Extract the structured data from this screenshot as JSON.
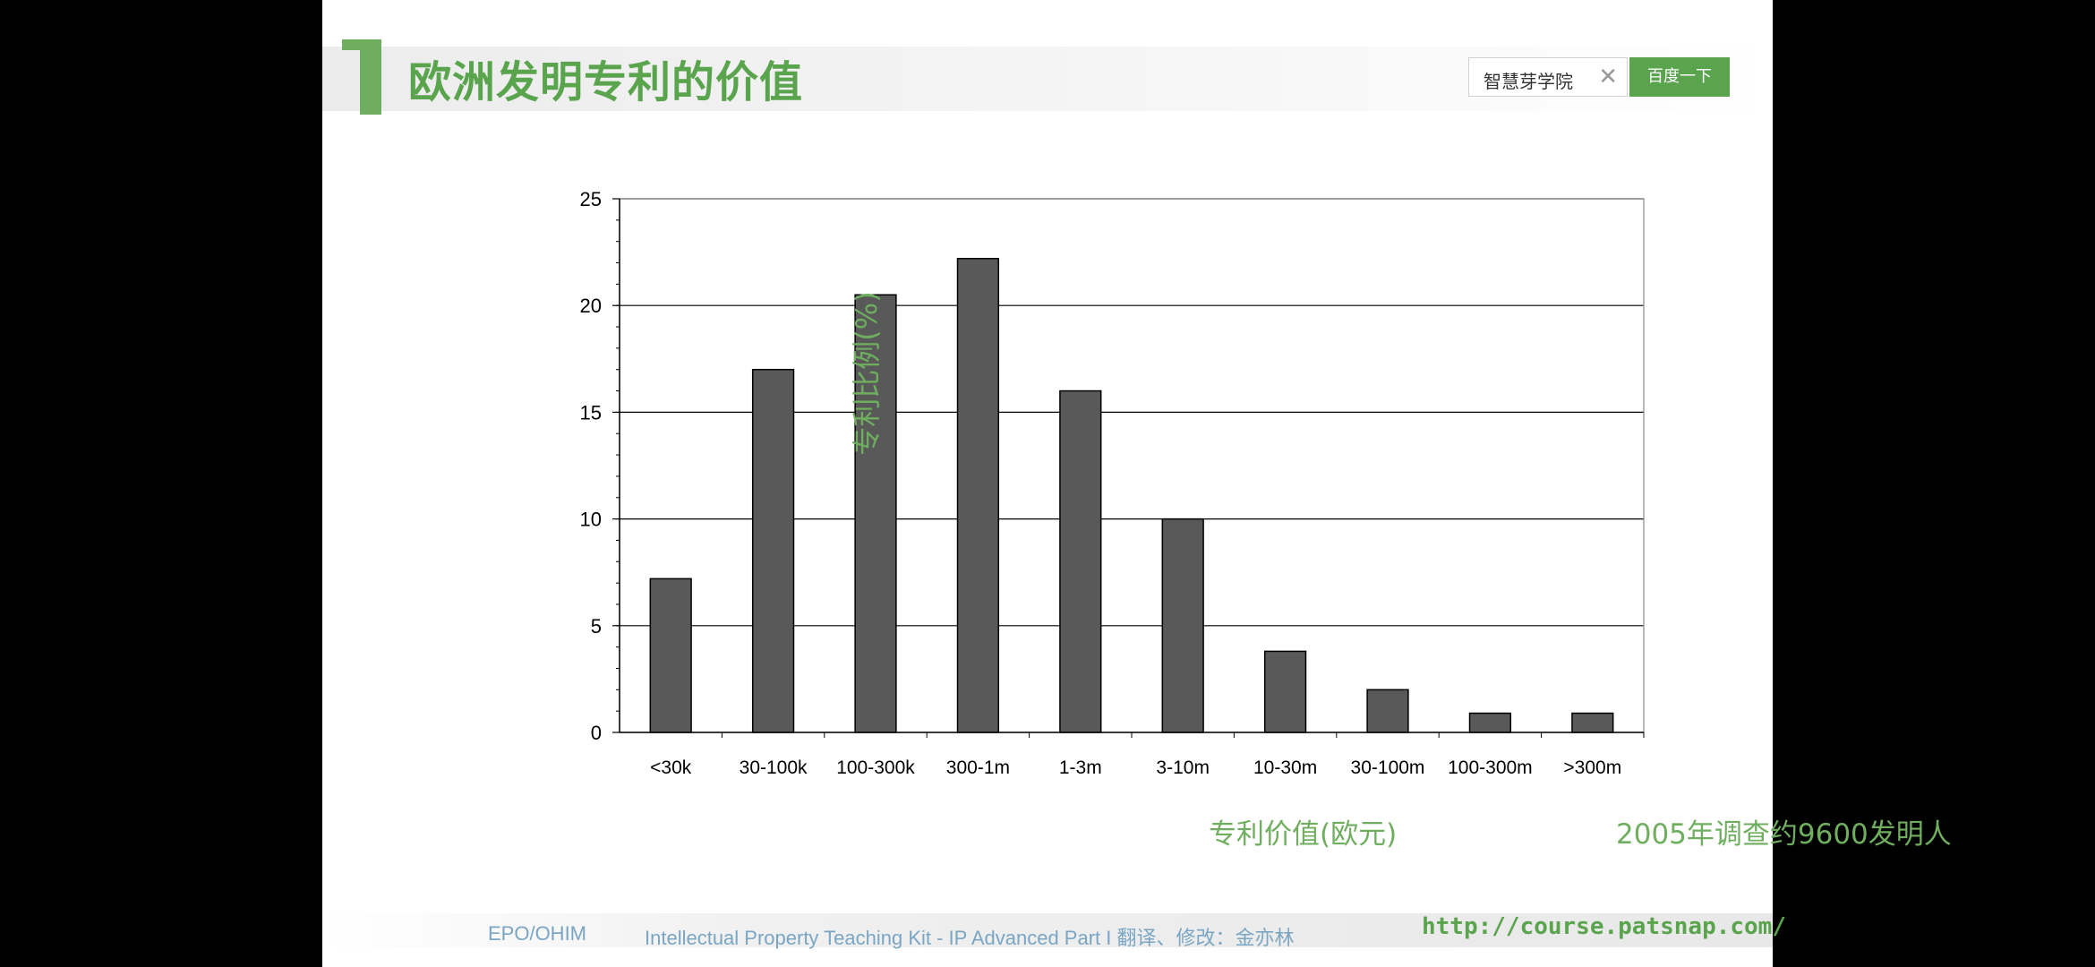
{
  "title": "欧洲发明专利的价值",
  "search": {
    "value": "智慧芽学院",
    "clear_icon": "close-icon",
    "button_label": "百度一下"
  },
  "chart_data": {
    "type": "bar",
    "categories": [
      "<30k",
      "30-100k",
      "100-300k",
      "300-1m",
      "1-3m",
      "3-10m",
      "10-30m",
      "30-100m",
      "100-300m",
      ">300m"
    ],
    "values": [
      7.2,
      17.0,
      20.5,
      22.2,
      16.0,
      10.0,
      3.8,
      2.0,
      0.9,
      0.9
    ],
    "ylabel": "专利比例(%)",
    "xlabel": "专利价值(欧元)",
    "annotation": "2005年调查约9600发明人",
    "ylim": [
      0,
      25
    ],
    "yticks": [
      0,
      5,
      10,
      15,
      20,
      25
    ],
    "grid": true,
    "bar_color": "#595959"
  },
  "footer": {
    "source": "EPO/OHIM",
    "credit": "Intellectual Property Teaching Kit - IP Advanced Part I 翻译、修改：金亦林",
    "url": "http://course.patsnap.com/"
  }
}
